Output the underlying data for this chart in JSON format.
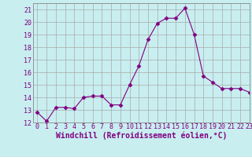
{
  "x": [
    0,
    1,
    2,
    3,
    4,
    5,
    6,
    7,
    8,
    9,
    10,
    11,
    12,
    13,
    14,
    15,
    16,
    17,
    18,
    19,
    20,
    21,
    22,
    23
  ],
  "y": [
    12.8,
    12.1,
    13.2,
    13.2,
    13.1,
    14.0,
    14.1,
    14.1,
    13.4,
    13.4,
    15.0,
    16.5,
    18.6,
    19.9,
    20.3,
    20.3,
    21.1,
    19.0,
    15.7,
    15.2,
    14.7,
    14.7,
    14.7,
    14.4
  ],
  "line_color": "#800080",
  "marker": "D",
  "marker_size": 2.5,
  "bg_color": "#c8eef0",
  "grid_color": "#aaaaaa",
  "xlabel": "Windchill (Refroidissement éolien,°C)",
  "ylabel": "",
  "ylim": [
    12,
    21.5
  ],
  "xlim": [
    -0.5,
    23
  ],
  "yticks": [
    12,
    13,
    14,
    15,
    16,
    17,
    18,
    19,
    20,
    21
  ],
  "xticks": [
    0,
    1,
    2,
    3,
    4,
    5,
    6,
    7,
    8,
    9,
    10,
    11,
    12,
    13,
    14,
    15,
    16,
    17,
    18,
    19,
    20,
    21,
    22,
    23
  ],
  "tick_label_fontsize": 6,
  "xlabel_fontsize": 7
}
